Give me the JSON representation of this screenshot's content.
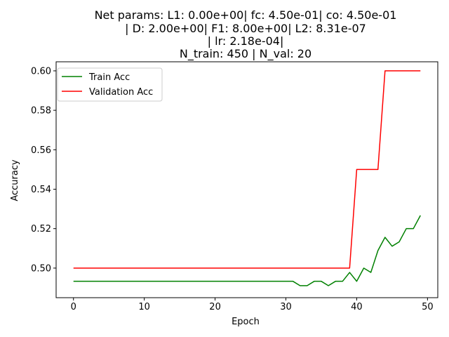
{
  "chart_data": {
    "type": "line",
    "title_lines": [
      "Net params: L1: 0.00e+00| fc: 4.50e-01| co: 4.50e-01",
      "| D: 2.00e+00| F1: 8.00e+00| L2: 8.31e-07",
      "| lr: 2.18e-04|",
      "N_train: 450 | N_val: 20"
    ],
    "xlabel": "Epoch",
    "ylabel": "Accuracy",
    "xlim": [
      -2.45,
      51.45
    ],
    "ylim": [
      0.485,
      0.6046
    ],
    "xticks": [
      0,
      10,
      20,
      30,
      40,
      50
    ],
    "xtick_labels": [
      "0",
      "10",
      "20",
      "30",
      "40",
      "50"
    ],
    "yticks": [
      0.5,
      0.52,
      0.54,
      0.56,
      0.58,
      0.6
    ],
    "ytick_labels": [
      "0.50",
      "0.52",
      "0.54",
      "0.56",
      "0.58",
      "0.60"
    ],
    "grid": false,
    "legend_position": "upper-left",
    "x": [
      0,
      1,
      2,
      3,
      4,
      5,
      6,
      7,
      8,
      9,
      10,
      11,
      12,
      13,
      14,
      15,
      16,
      17,
      18,
      19,
      20,
      21,
      22,
      23,
      24,
      25,
      26,
      27,
      28,
      29,
      30,
      31,
      32,
      33,
      34,
      35,
      36,
      37,
      38,
      39,
      40,
      41,
      42,
      43,
      44,
      45,
      46,
      47,
      48,
      49
    ],
    "series": [
      {
        "name": "Train Acc",
        "color": "#008000",
        "values": [
          0.4933,
          0.4933,
          0.4933,
          0.4933,
          0.4933,
          0.4933,
          0.4933,
          0.4933,
          0.4933,
          0.4933,
          0.4933,
          0.4933,
          0.4933,
          0.4933,
          0.4933,
          0.4933,
          0.4933,
          0.4933,
          0.4933,
          0.4933,
          0.4933,
          0.4933,
          0.4933,
          0.4933,
          0.4933,
          0.4933,
          0.4933,
          0.4933,
          0.4933,
          0.4933,
          0.4933,
          0.4933,
          0.4911,
          0.4911,
          0.4933,
          0.4933,
          0.4911,
          0.4933,
          0.4933,
          0.4978,
          0.4933,
          0.5,
          0.4978,
          0.5089,
          0.5156,
          0.5111,
          0.5133,
          0.52,
          0.52,
          0.5267
        ]
      },
      {
        "name": "Validation Acc",
        "color": "#ff0000",
        "values": [
          0.5,
          0.5,
          0.5,
          0.5,
          0.5,
          0.5,
          0.5,
          0.5,
          0.5,
          0.5,
          0.5,
          0.5,
          0.5,
          0.5,
          0.5,
          0.5,
          0.5,
          0.5,
          0.5,
          0.5,
          0.5,
          0.5,
          0.5,
          0.5,
          0.5,
          0.5,
          0.5,
          0.5,
          0.5,
          0.5,
          0.5,
          0.5,
          0.5,
          0.5,
          0.5,
          0.5,
          0.5,
          0.5,
          0.5,
          0.5,
          0.55,
          0.55,
          0.55,
          0.55,
          0.6,
          0.6,
          0.6,
          0.6,
          0.6,
          0.6
        ]
      }
    ]
  }
}
